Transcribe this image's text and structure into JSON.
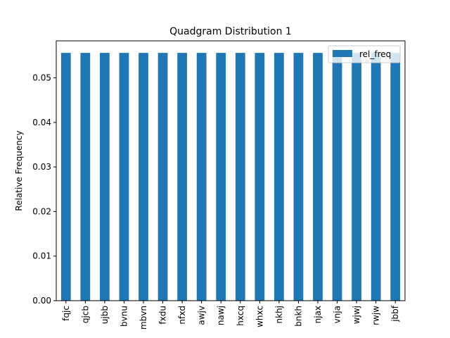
{
  "chart_data": {
    "type": "bar",
    "title": "Quadgram Distribution 1",
    "xlabel": "",
    "ylabel": "Relative Frequency",
    "categories": [
      "fqjc",
      "qjcb",
      "ujbb",
      "bvnu",
      "mbvn",
      "fxdu",
      "nfxd",
      "awjv",
      "nawj",
      "hxcq",
      "whxc",
      "nkhj",
      "bnkh",
      "njax",
      "vnja",
      "wjwj",
      "rwjw",
      "jbbf"
    ],
    "series": [
      {
        "name": "rel_freq",
        "values": [
          0.0556,
          0.0556,
          0.0556,
          0.0556,
          0.0556,
          0.0556,
          0.0556,
          0.0556,
          0.0556,
          0.0556,
          0.0556,
          0.0556,
          0.0556,
          0.0556,
          0.0556,
          0.0556,
          0.0556,
          0.0556
        ]
      }
    ],
    "ylim": [
      0,
      0.0583
    ],
    "yticks": [
      0.0,
      0.01,
      0.02,
      0.03,
      0.04,
      0.05
    ],
    "ytick_labels": [
      "0.00",
      "0.01",
      "0.02",
      "0.03",
      "0.04",
      "0.05"
    ],
    "grid": false,
    "legend_position": "top-right",
    "bar_color": "#1f77b4"
  }
}
